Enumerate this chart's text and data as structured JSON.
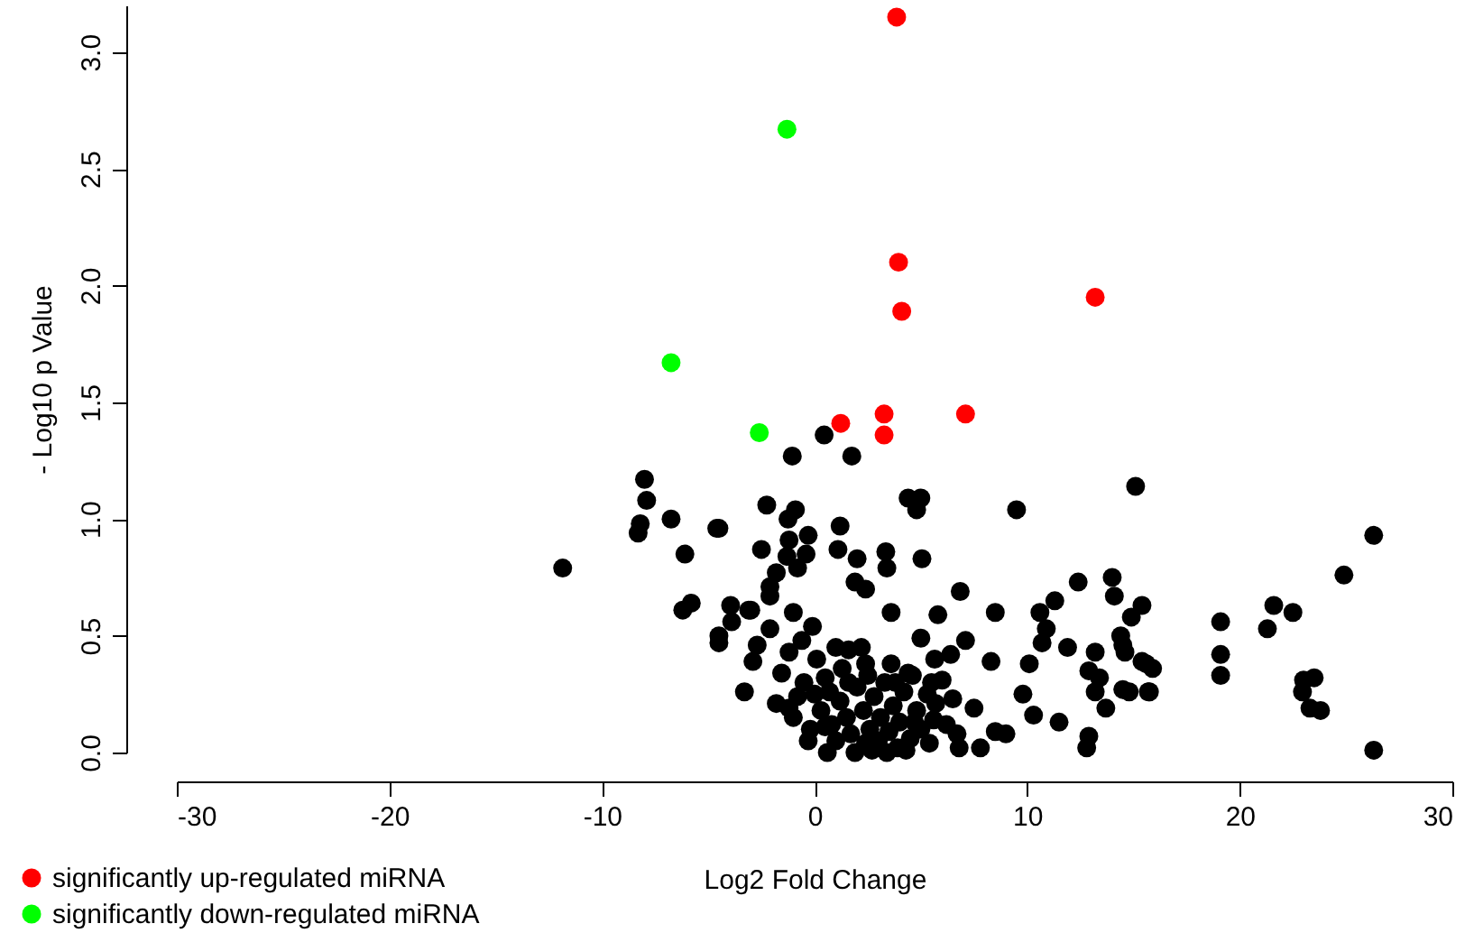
{
  "chart_data": {
    "type": "scatter",
    "xlabel": "Log2 Fold Change",
    "ylabel": "- Log10 p Value",
    "xlim": [
      -30,
      30
    ],
    "xticks": [
      -30,
      -20,
      -10,
      0,
      10,
      20,
      30
    ],
    "ylim": [
      0,
      3.2
    ],
    "yticks": [
      {
        "value": 0,
        "label": "0.0"
      },
      0.5,
      {
        "value": 1,
        "label": "1.0"
      },
      1.5,
      {
        "value": 2,
        "label": "2.0"
      },
      2.5,
      {
        "value": 3,
        "label": "3.0"
      }
    ],
    "grid": false,
    "legend": "bottom left",
    "marker": "circle",
    "series": [
      {
        "color": "#000000",
        "x": [
          -11.85,
          -8.0,
          -7.9,
          -8.2,
          -8.3,
          -6.75,
          -4.5,
          -6.1,
          -5.8,
          -6.2,
          -3.95,
          -3.9,
          -3.1,
          -4.5,
          -4.5,
          -3.3,
          -2.25,
          -1.25,
          -0.9,
          -4.6,
          -2.5,
          -1.2,
          -0.3,
          -1.3,
          -0.8,
          -0.4,
          1.1,
          1.2,
          -1.05,
          0.45,
          -1.8,
          -2.1,
          -2.1,
          -3.0,
          1.75,
          4.4,
          5.0,
          4.8,
          9.5,
          15.1,
          2.0,
          3.35,
          3.4,
          5.05,
          1.9,
          2.4,
          6.85,
          8.5,
          12.4,
          14.0,
          14.1,
          11.3,
          15.4,
          14.9,
          10.6,
          10.9,
          10.7,
          3.6,
          5.8,
          5.0,
          7.1,
          8.3,
          10.1,
          11.9,
          13.2,
          14.5,
          15.4,
          13.2,
          14.5,
          15.7,
          13.7,
          12.9,
          12.8,
          9.8,
          10.3,
          11.5,
          8.5,
          7.8,
          6.8,
          9.0,
          6.4,
          5.65,
          4.4,
          2.4,
          1.6,
          6.0,
          6.5,
          7.5,
          5.7,
          4.7,
          6.7,
          5.4,
          2.4,
          26.3,
          24.9,
          21.6,
          22.5,
          21.3,
          19.1,
          19.1,
          19.1,
          23.5,
          23.0,
          22.95,
          23.3,
          23.8,
          26.3,
          14.4,
          14.6,
          15.6,
          15.9,
          12.9,
          13.4,
          14.8,
          15.75,
          -1.2,
          -1.55,
          -2.9,
          -2.1,
          -2.7,
          -1.8,
          -1.2,
          0.5,
          -0.1,
          -1.0,
          -0.5,
          0.0,
          0.3,
          0.8,
          1.0,
          1.2,
          1.5,
          1.7,
          2.0,
          2.3,
          2.6,
          2.8,
          3.0,
          3.1,
          3.3,
          3.5,
          3.7,
          3.9,
          4.0,
          4.2,
          4.5,
          4.8,
          5.0,
          5.3,
          5.6,
          0.5,
          1.3,
          2.5,
          3.6,
          -0.2,
          -0.8,
          0.6,
          1.9,
          2.7,
          3.4,
          4.3,
          0.1,
          1.0,
          -0.6,
          2.2,
          1.6,
          0.7,
          3.8,
          4.6,
          5.5,
          6.2,
          -1.0,
          -0.3
        ],
        "values": [
          0.79,
          1.17,
          1.08,
          0.98,
          0.94,
          1.0,
          0.96,
          0.85,
          0.64,
          0.61,
          0.63,
          0.56,
          0.61,
          0.5,
          0.47,
          0.26,
          1.06,
          1.0,
          1.04,
          0.96,
          0.87,
          0.91,
          0.93,
          0.84,
          0.79,
          0.85,
          0.87,
          0.97,
          1.27,
          1.36,
          0.77,
          0.71,
          0.67,
          0.61,
          1.27,
          1.09,
          1.09,
          1.04,
          1.04,
          1.14,
          0.83,
          0.86,
          0.79,
          0.83,
          0.73,
          0.7,
          0.69,
          0.6,
          0.73,
          0.75,
          0.67,
          0.65,
          0.63,
          0.58,
          0.6,
          0.53,
          0.47,
          0.6,
          0.59,
          0.49,
          0.48,
          0.39,
          0.38,
          0.45,
          0.43,
          0.46,
          0.39,
          0.26,
          0.27,
          0.26,
          0.19,
          0.07,
          0.02,
          0.25,
          0.16,
          0.13,
          0.09,
          0.02,
          0.02,
          0.08,
          0.42,
          0.4,
          0.34,
          0.38,
          0.44,
          0.31,
          0.23,
          0.19,
          0.21,
          0.13,
          0.08,
          0.04,
          0.04,
          0.93,
          0.76,
          0.63,
          0.6,
          0.53,
          0.56,
          0.42,
          0.33,
          0.32,
          0.31,
          0.26,
          0.19,
          0.18,
          0.01,
          0.5,
          0.43,
          0.38,
          0.36,
          0.35,
          0.32,
          0.26,
          0.26,
          0.43,
          0.34,
          0.39,
          0.53,
          0.46,
          0.21,
          0.19,
          0.11,
          0.54,
          0.6,
          0.3,
          0.25,
          0.18,
          0.12,
          0.05,
          0.22,
          0.15,
          0.08,
          0.28,
          0.18,
          0.1,
          0.24,
          0.05,
          0.15,
          0.3,
          0.09,
          0.2,
          0.02,
          0.13,
          0.26,
          0.06,
          0.18,
          0.1,
          0.25,
          0.14,
          0.32,
          0.36,
          0.33,
          0.38,
          0.1,
          0.24,
          0.0,
          0.0,
          0.01,
          0.0,
          0.01,
          0.4,
          0.45,
          0.48,
          0.45,
          0.3,
          0.26,
          0.3,
          0.33,
          0.3,
          0.12,
          0.15,
          0.05
        ]
      },
      {
        "name": "significantly up-regulated miRNA",
        "color": "#ff0000",
        "x": [
          3.86,
          3.95,
          4.1,
          13.2,
          1.23,
          3.27,
          3.27,
          7.1
        ],
        "values": [
          3.15,
          2.1,
          1.89,
          1.95,
          1.41,
          1.45,
          1.36,
          1.45
        ]
      },
      {
        "name": "significantly down-regulated miRNA",
        "color": "#00ff00",
        "x": [
          -1.3,
          -6.75,
          -2.6
        ],
        "values": [
          2.67,
          1.67,
          1.37
        ]
      }
    ]
  }
}
